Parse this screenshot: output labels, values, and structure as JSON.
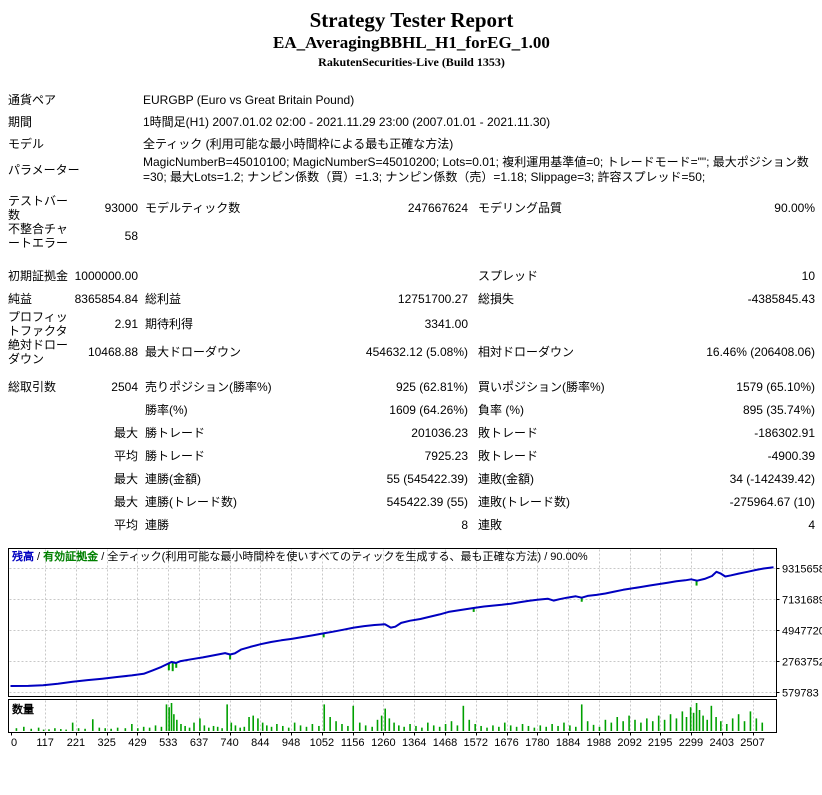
{
  "header": {
    "title": "Strategy Tester Report",
    "subtitle": "EA_AveragingBBHL_H1_forEG_1.00",
    "build": "RakutenSecurities-Live (Build 1353)"
  },
  "info_rows": [
    {
      "label": "通貨ペア",
      "value": "EURGBP (Euro vs Great Britain Pound)"
    },
    {
      "label": "期間",
      "value": "1時間足(H1) 2007.01.02 02:00 - 2021.11.29 23:00 (2007.01.01 - 2021.11.30)"
    },
    {
      "label": "モデル",
      "value": "全ティック (利用可能な最小時間枠による最も正確な方法)"
    },
    {
      "label": "パラメーター",
      "value": "MagicNumberB=45010100; MagicNumberS=45010200; Lots=0.01; 複利運用基準値=0; トレードモード=\"\"; 最大ポジション数=30; 最大Lots=1.2; ナンピン係数（買）=1.3; ナンピン係数（売）=1.18; Slippage=3; 許容スプレッド=50;"
    }
  ],
  "stat_rows": [
    {
      "cells": [
        "テストバー数",
        "93000",
        "モデルティック数",
        "247667624",
        "モデリング品質",
        "90.00%"
      ],
      "gap": "sm"
    },
    {
      "cells": [
        "不整合チャートエラー",
        "58",
        "",
        "",
        "",
        ""
      ]
    },
    {
      "cells": [
        "初期証拠金",
        "1000000.00",
        "",
        "",
        "スプレッド",
        "10"
      ],
      "gap": "lg"
    },
    {
      "cells": [
        "純益",
        "8365854.84",
        "総利益",
        "12751700.27",
        "総損失",
        "-4385845.43"
      ]
    },
    {
      "cells": [
        "プロフィットファクタ",
        "2.91",
        "期待利得",
        "3341.00",
        "",
        ""
      ]
    },
    {
      "cells": [
        "絶対ドローダウン",
        "10468.88",
        "最大ドローダウン",
        "454632.12 (5.08%)",
        "相対ドローダウン",
        "16.46% (206408.06)"
      ]
    },
    {
      "cells": [
        "総取引数",
        "2504",
        "売りポジション(勝率%)",
        "925 (62.81%)",
        "買いポジション(勝率%)",
        "1579 (65.10%)"
      ],
      "gap": "sm"
    },
    {
      "cells": [
        "",
        "",
        "勝率(%)",
        "1609 (64.26%)",
        "負率 (%)",
        "895 (35.74%)"
      ]
    },
    {
      "cells": [
        "",
        "最大",
        "勝トレード",
        "201036.23",
        "敗トレード",
        "-186302.91"
      ]
    },
    {
      "cells": [
        "",
        "平均",
        "勝トレード",
        "7925.23",
        "敗トレード",
        "-4900.39"
      ]
    },
    {
      "cells": [
        "",
        "最大",
        "連勝(金額)",
        "55 (545422.39)",
        "連敗(金額)",
        "34 (-142439.42)"
      ]
    },
    {
      "cells": [
        "",
        "最大",
        "連勝(トレード数)",
        "545422.39 (55)",
        "連敗(トレード数)",
        "-275964.67 (10)"
      ]
    },
    {
      "cells": [
        "",
        "平均",
        "連勝",
        "8",
        "連敗",
        "4"
      ]
    }
  ],
  "chart_data": {
    "type": "line",
    "legend": {
      "balance_label": "残高",
      "separator": " / ",
      "equity_label": "有効証拠金",
      "model_and_quality": "全ティック(利用可能な最小時間枠を使いすべてのティックを生成する、最も正確な方法) / 90.00%"
    },
    "volume_panel_label": "数量",
    "xlabel": "",
    "ylabel": "",
    "x_ticks": [
      0,
      117,
      221,
      325,
      429,
      533,
      637,
      740,
      844,
      948,
      1052,
      1156,
      1260,
      1364,
      1468,
      1572,
      1676,
      1780,
      1884,
      1988,
      2092,
      2195,
      2299,
      2403,
      2507
    ],
    "y_ticks": [
      9315658,
      7131689,
      4947720,
      2763752,
      579783
    ],
    "x_max": 2580,
    "ylim": [
      579783,
      9315658
    ],
    "grid": true,
    "colors": {
      "balance_line": "#0000c0",
      "equity_text": "#008000",
      "volume_bar": "#00a000",
      "grid_line": "#c8c8c8",
      "panel_border": "#000000"
    },
    "balance_series": [
      [
        0,
        1000000
      ],
      [
        60,
        1010000
      ],
      [
        110,
        1060000
      ],
      [
        160,
        1160000
      ],
      [
        210,
        1300000
      ],
      [
        260,
        1420000
      ],
      [
        310,
        1520000
      ],
      [
        360,
        1640000
      ],
      [
        410,
        1750000
      ],
      [
        450,
        1860000
      ],
      [
        480,
        2100000
      ],
      [
        510,
        2350000
      ],
      [
        530,
        2550000
      ],
      [
        545,
        2700000
      ],
      [
        558,
        2620000
      ],
      [
        575,
        2760000
      ],
      [
        610,
        2880000
      ],
      [
        650,
        3020000
      ],
      [
        690,
        3180000
      ],
      [
        725,
        3320000
      ],
      [
        742,
        3220000
      ],
      [
        758,
        3300000
      ],
      [
        780,
        3580000
      ],
      [
        810,
        3760000
      ],
      [
        845,
        3950000
      ],
      [
        880,
        4100000
      ],
      [
        915,
        4220000
      ],
      [
        950,
        4320000
      ],
      [
        985,
        4450000
      ],
      [
        1020,
        4570000
      ],
      [
        1055,
        4700000
      ],
      [
        1090,
        4830000
      ],
      [
        1125,
        4970000
      ],
      [
        1160,
        5120000
      ],
      [
        1195,
        5220000
      ],
      [
        1230,
        5300000
      ],
      [
        1265,
        5350000
      ],
      [
        1285,
        5120000
      ],
      [
        1300,
        5180000
      ],
      [
        1320,
        5450000
      ],
      [
        1350,
        5600000
      ],
      [
        1385,
        5720000
      ],
      [
        1420,
        5900000
      ],
      [
        1450,
        6050000
      ],
      [
        1480,
        6220000
      ],
      [
        1510,
        6320000
      ],
      [
        1540,
        6420000
      ],
      [
        1570,
        6520000
      ],
      [
        1600,
        6600000
      ],
      [
        1630,
        6670000
      ],
      [
        1660,
        6720000
      ],
      [
        1690,
        6800000
      ],
      [
        1720,
        6900000
      ],
      [
        1750,
        7000000
      ],
      [
        1780,
        7080000
      ],
      [
        1815,
        7150000
      ],
      [
        1835,
        7020000
      ],
      [
        1855,
        7120000
      ],
      [
        1880,
        7220000
      ],
      [
        1910,
        7320000
      ],
      [
        1930,
        7220000
      ],
      [
        1950,
        7350000
      ],
      [
        1980,
        7420000
      ],
      [
        2010,
        7520000
      ],
      [
        2040,
        7650000
      ],
      [
        2070,
        7780000
      ],
      [
        2100,
        7880000
      ],
      [
        2130,
        7980000
      ],
      [
        2160,
        8080000
      ],
      [
        2190,
        8180000
      ],
      [
        2220,
        8280000
      ],
      [
        2250,
        8380000
      ],
      [
        2280,
        8450000
      ],
      [
        2300,
        8520000
      ],
      [
        2320,
        8420000
      ],
      [
        2345,
        8550000
      ],
      [
        2370,
        8750000
      ],
      [
        2385,
        9050000
      ],
      [
        2400,
        8920000
      ],
      [
        2415,
        8720000
      ],
      [
        2435,
        8800000
      ],
      [
        2460,
        8920000
      ],
      [
        2490,
        9050000
      ],
      [
        2520,
        9180000
      ],
      [
        2545,
        9280000
      ],
      [
        2565,
        9340000
      ],
      [
        2578,
        9365855
      ]
    ],
    "equity_dip_marks": [
      [
        535,
        7
      ],
      [
        548,
        9
      ],
      [
        560,
        5
      ],
      [
        742,
        5
      ],
      [
        1058,
        4
      ],
      [
        1565,
        4
      ],
      [
        1930,
        4
      ],
      [
        2318,
        5
      ]
    ],
    "volume_bars": [
      [
        20,
        0.1
      ],
      [
        45,
        0.15
      ],
      [
        70,
        0.08
      ],
      [
        95,
        0.12
      ],
      [
        112,
        0.05
      ],
      [
        130,
        0.06
      ],
      [
        150,
        0.1
      ],
      [
        170,
        0.07
      ],
      [
        188,
        0.05
      ],
      [
        210,
        0.3
      ],
      [
        230,
        0.1
      ],
      [
        252,
        0.08
      ],
      [
        278,
        0.42
      ],
      [
        300,
        0.12
      ],
      [
        320,
        0.1
      ],
      [
        340,
        0.08
      ],
      [
        362,
        0.12
      ],
      [
        388,
        0.1
      ],
      [
        410,
        0.25
      ],
      [
        430,
        0.1
      ],
      [
        450,
        0.15
      ],
      [
        470,
        0.12
      ],
      [
        490,
        0.2
      ],
      [
        510,
        0.15
      ],
      [
        527,
        0.95
      ],
      [
        536,
        0.85
      ],
      [
        544,
        1.0
      ],
      [
        552,
        0.6
      ],
      [
        562,
        0.4
      ],
      [
        576,
        0.25
      ],
      [
        590,
        0.18
      ],
      [
        605,
        0.12
      ],
      [
        620,
        0.3
      ],
      [
        640,
        0.45
      ],
      [
        655,
        0.2
      ],
      [
        670,
        0.12
      ],
      [
        686,
        0.18
      ],
      [
        700,
        0.15
      ],
      [
        715,
        0.1
      ],
      [
        732,
        0.95
      ],
      [
        746,
        0.3
      ],
      [
        760,
        0.2
      ],
      [
        776,
        0.12
      ],
      [
        790,
        0.15
      ],
      [
        806,
        0.5
      ],
      [
        820,
        0.55
      ],
      [
        836,
        0.45
      ],
      [
        852,
        0.3
      ],
      [
        866,
        0.2
      ],
      [
        882,
        0.15
      ],
      [
        900,
        0.25
      ],
      [
        920,
        0.18
      ],
      [
        940,
        0.12
      ],
      [
        960,
        0.3
      ],
      [
        980,
        0.2
      ],
      [
        1000,
        0.15
      ],
      [
        1020,
        0.25
      ],
      [
        1042,
        0.18
      ],
      [
        1060,
        0.95
      ],
      [
        1080,
        0.5
      ],
      [
        1100,
        0.35
      ],
      [
        1120,
        0.25
      ],
      [
        1140,
        0.18
      ],
      [
        1158,
        0.9
      ],
      [
        1180,
        0.3
      ],
      [
        1200,
        0.2
      ],
      [
        1222,
        0.15
      ],
      [
        1240,
        0.4
      ],
      [
        1254,
        0.55
      ],
      [
        1266,
        0.8
      ],
      [
        1280,
        0.45
      ],
      [
        1296,
        0.3
      ],
      [
        1312,
        0.2
      ],
      [
        1330,
        0.15
      ],
      [
        1350,
        0.25
      ],
      [
        1370,
        0.18
      ],
      [
        1390,
        0.12
      ],
      [
        1410,
        0.3
      ],
      [
        1430,
        0.2
      ],
      [
        1450,
        0.15
      ],
      [
        1470,
        0.25
      ],
      [
        1490,
        0.35
      ],
      [
        1510,
        0.2
      ],
      [
        1530,
        0.9
      ],
      [
        1550,
        0.4
      ],
      [
        1570,
        0.25
      ],
      [
        1590,
        0.18
      ],
      [
        1610,
        0.12
      ],
      [
        1630,
        0.2
      ],
      [
        1650,
        0.15
      ],
      [
        1670,
        0.3
      ],
      [
        1690,
        0.2
      ],
      [
        1710,
        0.15
      ],
      [
        1730,
        0.25
      ],
      [
        1750,
        0.18
      ],
      [
        1770,
        0.12
      ],
      [
        1790,
        0.2
      ],
      [
        1810,
        0.15
      ],
      [
        1830,
        0.25
      ],
      [
        1850,
        0.18
      ],
      [
        1870,
        0.3
      ],
      [
        1890,
        0.2
      ],
      [
        1910,
        0.15
      ],
      [
        1930,
        0.95
      ],
      [
        1950,
        0.35
      ],
      [
        1970,
        0.22
      ],
      [
        1990,
        0.15
      ],
      [
        2010,
        0.4
      ],
      [
        2030,
        0.3
      ],
      [
        2050,
        0.5
      ],
      [
        2070,
        0.35
      ],
      [
        2090,
        0.55
      ],
      [
        2110,
        0.4
      ],
      [
        2130,
        0.3
      ],
      [
        2150,
        0.45
      ],
      [
        2170,
        0.35
      ],
      [
        2190,
        0.55
      ],
      [
        2210,
        0.4
      ],
      [
        2230,
        0.6
      ],
      [
        2250,
        0.45
      ],
      [
        2270,
        0.7
      ],
      [
        2284,
        0.5
      ],
      [
        2298,
        0.85
      ],
      [
        2308,
        0.65
      ],
      [
        2318,
        1.0
      ],
      [
        2328,
        0.75
      ],
      [
        2340,
        0.55
      ],
      [
        2354,
        0.4
      ],
      [
        2368,
        0.9
      ],
      [
        2384,
        0.5
      ],
      [
        2400,
        0.35
      ],
      [
        2420,
        0.25
      ],
      [
        2440,
        0.45
      ],
      [
        2460,
        0.6
      ],
      [
        2480,
        0.35
      ],
      [
        2500,
        0.7
      ],
      [
        2520,
        0.45
      ],
      [
        2540,
        0.3
      ]
    ]
  }
}
